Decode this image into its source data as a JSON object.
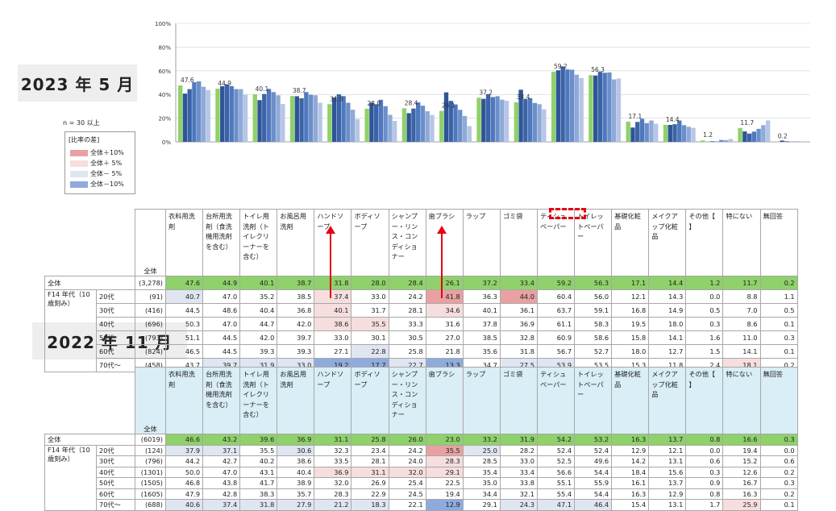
{
  "titles": {
    "p2023": "2023 年 5 月",
    "p2022": "2022 年 11 月"
  },
  "n_note": "n = 30 以上",
  "legend": {
    "title": "[比率の差]",
    "items": [
      {
        "label": "全体＋10%",
        "color": "#e8a1a3"
      },
      {
        "label": "全体＋ 5%",
        "color": "#f6dede"
      },
      {
        "label": "全体－ 5%",
        "color": "#dfe6f2"
      },
      {
        "label": "全体－10%",
        "color": "#8faadc"
      }
    ]
  },
  "colors": {
    "total": "#8fd16a",
    "age_series": [
      "#2f5597",
      "#3b63a8",
      "#4f78bd",
      "#6b8fcb",
      "#8fa9d8",
      "#b5c6e6"
    ]
  },
  "chart_data": [
    {
      "type": "bar",
      "categories": [
        "衣料用洗剤",
        "台所用洗剤（食洗機用洗剤を含む）",
        "トイレ用洗剤（トイレクリーナーを含む）",
        "お風呂用洗剤",
        "ハンドソープ",
        "ボディソープ",
        "シャンプー・リンス・コンディショナー",
        "歯ブラシ",
        "ラップ",
        "ゴミ袋",
        "ティシュペーパー",
        "トイレットペーパー",
        "基礎化粧品",
        "メイクアップ化粧品",
        "その他【 】",
        "特にない",
        "無回答"
      ],
      "yticks": [
        "0%",
        "20%",
        "40%",
        "60%",
        "80%",
        "100%"
      ],
      "ylim": [
        0,
        100
      ],
      "series": [
        {
          "name": "全体",
          "values": [
            47.6,
            44.9,
            40.1,
            38.7,
            31.8,
            28.0,
            28.4,
            26.1,
            37.2,
            33.4,
            59.2,
            56.3,
            17.1,
            14.4,
            1.2,
            11.7,
            0.2
          ]
        },
        {
          "name": "20代",
          "values": [
            40.7,
            47.0,
            35.2,
            38.5,
            37.4,
            33.0,
            24.2,
            41.8,
            36.3,
            44.0,
            60.4,
            56.0,
            12.1,
            14.3,
            0.0,
            8.8,
            1.1
          ]
        },
        {
          "name": "30代",
          "values": [
            44.5,
            48.6,
            40.4,
            36.8,
            40.1,
            31.7,
            28.1,
            34.6,
            40.1,
            36.1,
            63.7,
            59.1,
            16.8,
            14.9,
            0.5,
            7.0,
            0.5
          ]
        },
        {
          "name": "40代",
          "values": [
            50.3,
            47.0,
            44.7,
            42.0,
            38.6,
            35.5,
            33.3,
            31.6,
            37.8,
            36.9,
            61.1,
            58.3,
            19.5,
            18.0,
            0.3,
            8.6,
            0.1
          ]
        },
        {
          "name": "50代",
          "values": [
            51.1,
            44.5,
            42.0,
            39.7,
            33.0,
            30.1,
            30.5,
            27.0,
            38.5,
            32.8,
            60.9,
            58.6,
            15.8,
            14.1,
            1.6,
            11.0,
            0.3
          ]
        },
        {
          "name": "60代",
          "values": [
            46.5,
            44.5,
            39.3,
            39.3,
            27.1,
            22.8,
            25.8,
            21.8,
            35.6,
            31.8,
            56.7,
            52.7,
            18.0,
            12.7,
            1.5,
            14.1,
            0.1
          ]
        },
        {
          "name": "70代～",
          "values": [
            43.7,
            39.7,
            31.9,
            33.0,
            19.2,
            17.7,
            22.7,
            13.3,
            34.7,
            27.5,
            53.9,
            53.5,
            15.3,
            11.8,
            2.4,
            18.1,
            0.2
          ]
        }
      ],
      "data_labels": [
        "47.6",
        "44.9",
        "40.1",
        "38.7",
        "31.8",
        "28.0",
        "28.4",
        "26.1",
        "37.2",
        "33.4",
        "59.2",
        "56.3",
        "17.1",
        "14.4",
        "1.2",
        "11.7",
        "0.2"
      ]
    },
    {
      "type": "table",
      "header_label": "全体",
      "columns": [
        "衣料用洗剤",
        "台所用洗剤（食洗機用洗剤を含む）",
        "トイレ用洗剤（トイレクリーナーを含む）",
        "お風呂用洗剤",
        "ハンドソープ",
        "ボディソープ",
        "シャンプー・リンス・コンディショナー",
        "歯ブラシ",
        "ラップ",
        "ゴミ袋",
        "ティシュペーパー",
        "トイレットペーパー",
        "基礎化粧品",
        "メイクアップ化粧品",
        "その他【 】",
        "特にない",
        "無回答"
      ],
      "group_label": "F14 年代（10歳刻み）",
      "rows": [
        {
          "label": "全体",
          "n": "(3,278)",
          "values": [
            "47.6",
            "44.9",
            "40.1",
            "38.7",
            "31.8",
            "28.0",
            "28.4",
            "26.1",
            "37.2",
            "33.4",
            "59.2",
            "56.3",
            "17.1",
            "14.4",
            "1.2",
            "11.7",
            "0.2"
          ],
          "marks": []
        },
        {
          "label": "20代",
          "n": "(91)",
          "values": [
            "40.7",
            "47.0",
            "35.2",
            "38.5",
            "37.4",
            "33.0",
            "24.2",
            "41.8",
            "36.3",
            "44.0",
            "60.4",
            "56.0",
            "12.1",
            "14.3",
            "0.0",
            "8.8",
            "1.1"
          ],
          "marks": [
            "m5",
            "",
            "",
            "",
            "p5",
            "",
            "",
            "p10",
            "",
            "p10",
            "",
            "",
            "",
            "",
            "",
            "",
            ""
          ]
        },
        {
          "label": "30代",
          "n": "(416)",
          "values": [
            "44.5",
            "48.6",
            "40.4",
            "36.8",
            "40.1",
            "31.7",
            "28.1",
            "34.6",
            "40.1",
            "36.1",
            "63.7",
            "59.1",
            "16.8",
            "14.9",
            "0.5",
            "7.0",
            "0.5"
          ],
          "marks": [
            "",
            "",
            "",
            "",
            "p5",
            "",
            "",
            "p5",
            "",
            "",
            "",
            "",
            "",
            "",
            "",
            "",
            ""
          ]
        },
        {
          "label": "40代",
          "n": "(696)",
          "values": [
            "50.3",
            "47.0",
            "44.7",
            "42.0",
            "38.6",
            "35.5",
            "33.3",
            "31.6",
            "37.8",
            "36.9",
            "61.1",
            "58.3",
            "19.5",
            "18.0",
            "0.3",
            "8.6",
            "0.1"
          ],
          "marks": [
            "",
            "",
            "",
            "",
            "p5",
            "p5",
            "",
            "",
            "",
            "",
            "",
            "",
            "",
            "",
            "",
            "",
            ""
          ]
        },
        {
          "label": "50代",
          "n": "(793)",
          "values": [
            "51.1",
            "44.5",
            "42.0",
            "39.7",
            "33.0",
            "30.1",
            "30.5",
            "27.0",
            "38.5",
            "32.8",
            "60.9",
            "58.6",
            "15.8",
            "14.1",
            "1.6",
            "11.0",
            "0.3"
          ],
          "marks": []
        },
        {
          "label": "60代",
          "n": "(824)",
          "values": [
            "46.5",
            "44.5",
            "39.3",
            "39.3",
            "27.1",
            "22.8",
            "25.8",
            "21.8",
            "35.6",
            "31.8",
            "56.7",
            "52.7",
            "18.0",
            "12.7",
            "1.5",
            "14.1",
            "0.1"
          ],
          "marks": [
            "",
            "",
            "",
            "",
            "",
            "m5",
            "",
            "",
            "",
            "",
            "",
            "",
            "",
            "",
            "",
            "",
            ""
          ]
        },
        {
          "label": "70代～",
          "n": "(458)",
          "values": [
            "43.7",
            "39.7",
            "31.9",
            "33.0",
            "19.2",
            "17.7",
            "22.7",
            "13.3",
            "34.7",
            "27.5",
            "53.9",
            "53.5",
            "15.3",
            "11.8",
            "2.4",
            "18.1",
            "0.2"
          ],
          "marks": [
            "",
            "m5",
            "m5",
            "m5",
            "m10",
            "m10",
            "m5",
            "m10",
            "",
            "m5",
            "m5",
            "",
            "",
            "",
            "",
            "p5",
            ""
          ]
        }
      ]
    },
    {
      "type": "table",
      "header_label": "全体",
      "columns": [
        "衣料用洗剤",
        "台所用洗剤（食洗機用洗剤を含む）",
        "トイレ用洗剤（トイレクリーナーを含む）",
        "お風呂用洗剤",
        "ハンドソープ",
        "ボディソープ",
        "シャンプー・リンス・コンディショナー",
        "歯ブラシ",
        "ラップ",
        "ゴミ袋",
        "ティシュペーパー",
        "トイレットペーパー",
        "基礎化粧品",
        "メイクアップ化粧品",
        "その他【 】",
        "特にない",
        "無回答"
      ],
      "group_label": "F14 年代（10歳刻み）",
      "rows": [
        {
          "label": "全体",
          "n": "(6019)",
          "values": [
            "46.6",
            "43.2",
            "39.6",
            "36.9",
            "31.1",
            "25.8",
            "26.0",
            "23.0",
            "33.2",
            "31.9",
            "54.2",
            "53.2",
            "16.3",
            "13.7",
            "0.8",
            "16.6",
            "0.3"
          ],
          "marks": []
        },
        {
          "label": "20代",
          "n": "(124)",
          "values": [
            "37.9",
            "37.1",
            "35.5",
            "30.6",
            "32.3",
            "23.4",
            "24.2",
            "35.5",
            "25.0",
            "28.2",
            "52.4",
            "52.4",
            "12.9",
            "12.1",
            "0.0",
            "19.4",
            "0.0"
          ],
          "marks": [
            "m5",
            "m5",
            "",
            "m5",
            "",
            "",
            "",
            "p10",
            "m5",
            "",
            "",
            "",
            "",
            "",
            "",
            "",
            ""
          ]
        },
        {
          "label": "30代",
          "n": "(796)",
          "values": [
            "44.2",
            "42.7",
            "40.2",
            "38.6",
            "33.5",
            "28.1",
            "24.0",
            "28.3",
            "28.5",
            "33.0",
            "52.5",
            "49.6",
            "14.2",
            "13.1",
            "0.6",
            "15.2",
            "0.6"
          ],
          "marks": [
            "",
            "",
            "",
            "",
            "",
            "",
            "",
            "p5",
            "",
            "",
            "",
            "",
            "",
            "",
            "",
            "",
            ""
          ]
        },
        {
          "label": "40代",
          "n": "(1301)",
          "values": [
            "50.0",
            "47.0",
            "43.1",
            "40.4",
            "36.9",
            "31.1",
            "32.0",
            "29.1",
            "35.4",
            "33.4",
            "56.6",
            "54.4",
            "18.4",
            "15.6",
            "0.3",
            "12.6",
            "0.2"
          ],
          "marks": [
            "",
            "",
            "",
            "",
            "p5",
            "p5",
            "p5",
            "p5",
            "",
            "",
            "",
            "",
            "",
            "",
            "",
            "",
            ""
          ]
        },
        {
          "label": "50代",
          "n": "(1505)",
          "values": [
            "46.8",
            "43.8",
            "41.7",
            "38.9",
            "32.0",
            "26.9",
            "25.4",
            "22.5",
            "35.0",
            "33.8",
            "55.1",
            "55.9",
            "16.1",
            "13.7",
            "0.9",
            "16.7",
            "0.3"
          ],
          "marks": []
        },
        {
          "label": "60代",
          "n": "(1605)",
          "values": [
            "47.9",
            "42.8",
            "38.3",
            "35.7",
            "28.3",
            "22.9",
            "24.5",
            "19.4",
            "34.4",
            "32.1",
            "55.4",
            "54.4",
            "16.3",
            "12.9",
            "0.8",
            "16.3",
            "0.2"
          ],
          "marks": []
        },
        {
          "label": "70代～",
          "n": "(688)",
          "values": [
            "40.6",
            "37.4",
            "31.8",
            "27.9",
            "21.2",
            "18.3",
            "22.1",
            "12.9",
            "29.1",
            "24.3",
            "47.1",
            "46.4",
            "15.4",
            "13.1",
            "1.7",
            "25.9",
            "0.1"
          ],
          "marks": [
            "m5",
            "m5",
            "m5",
            "m5",
            "m5",
            "m5",
            "",
            "m10",
            "",
            "m5",
            "m5",
            "m5",
            "",
            "",
            "",
            "p5",
            ""
          ]
        }
      ]
    }
  ]
}
